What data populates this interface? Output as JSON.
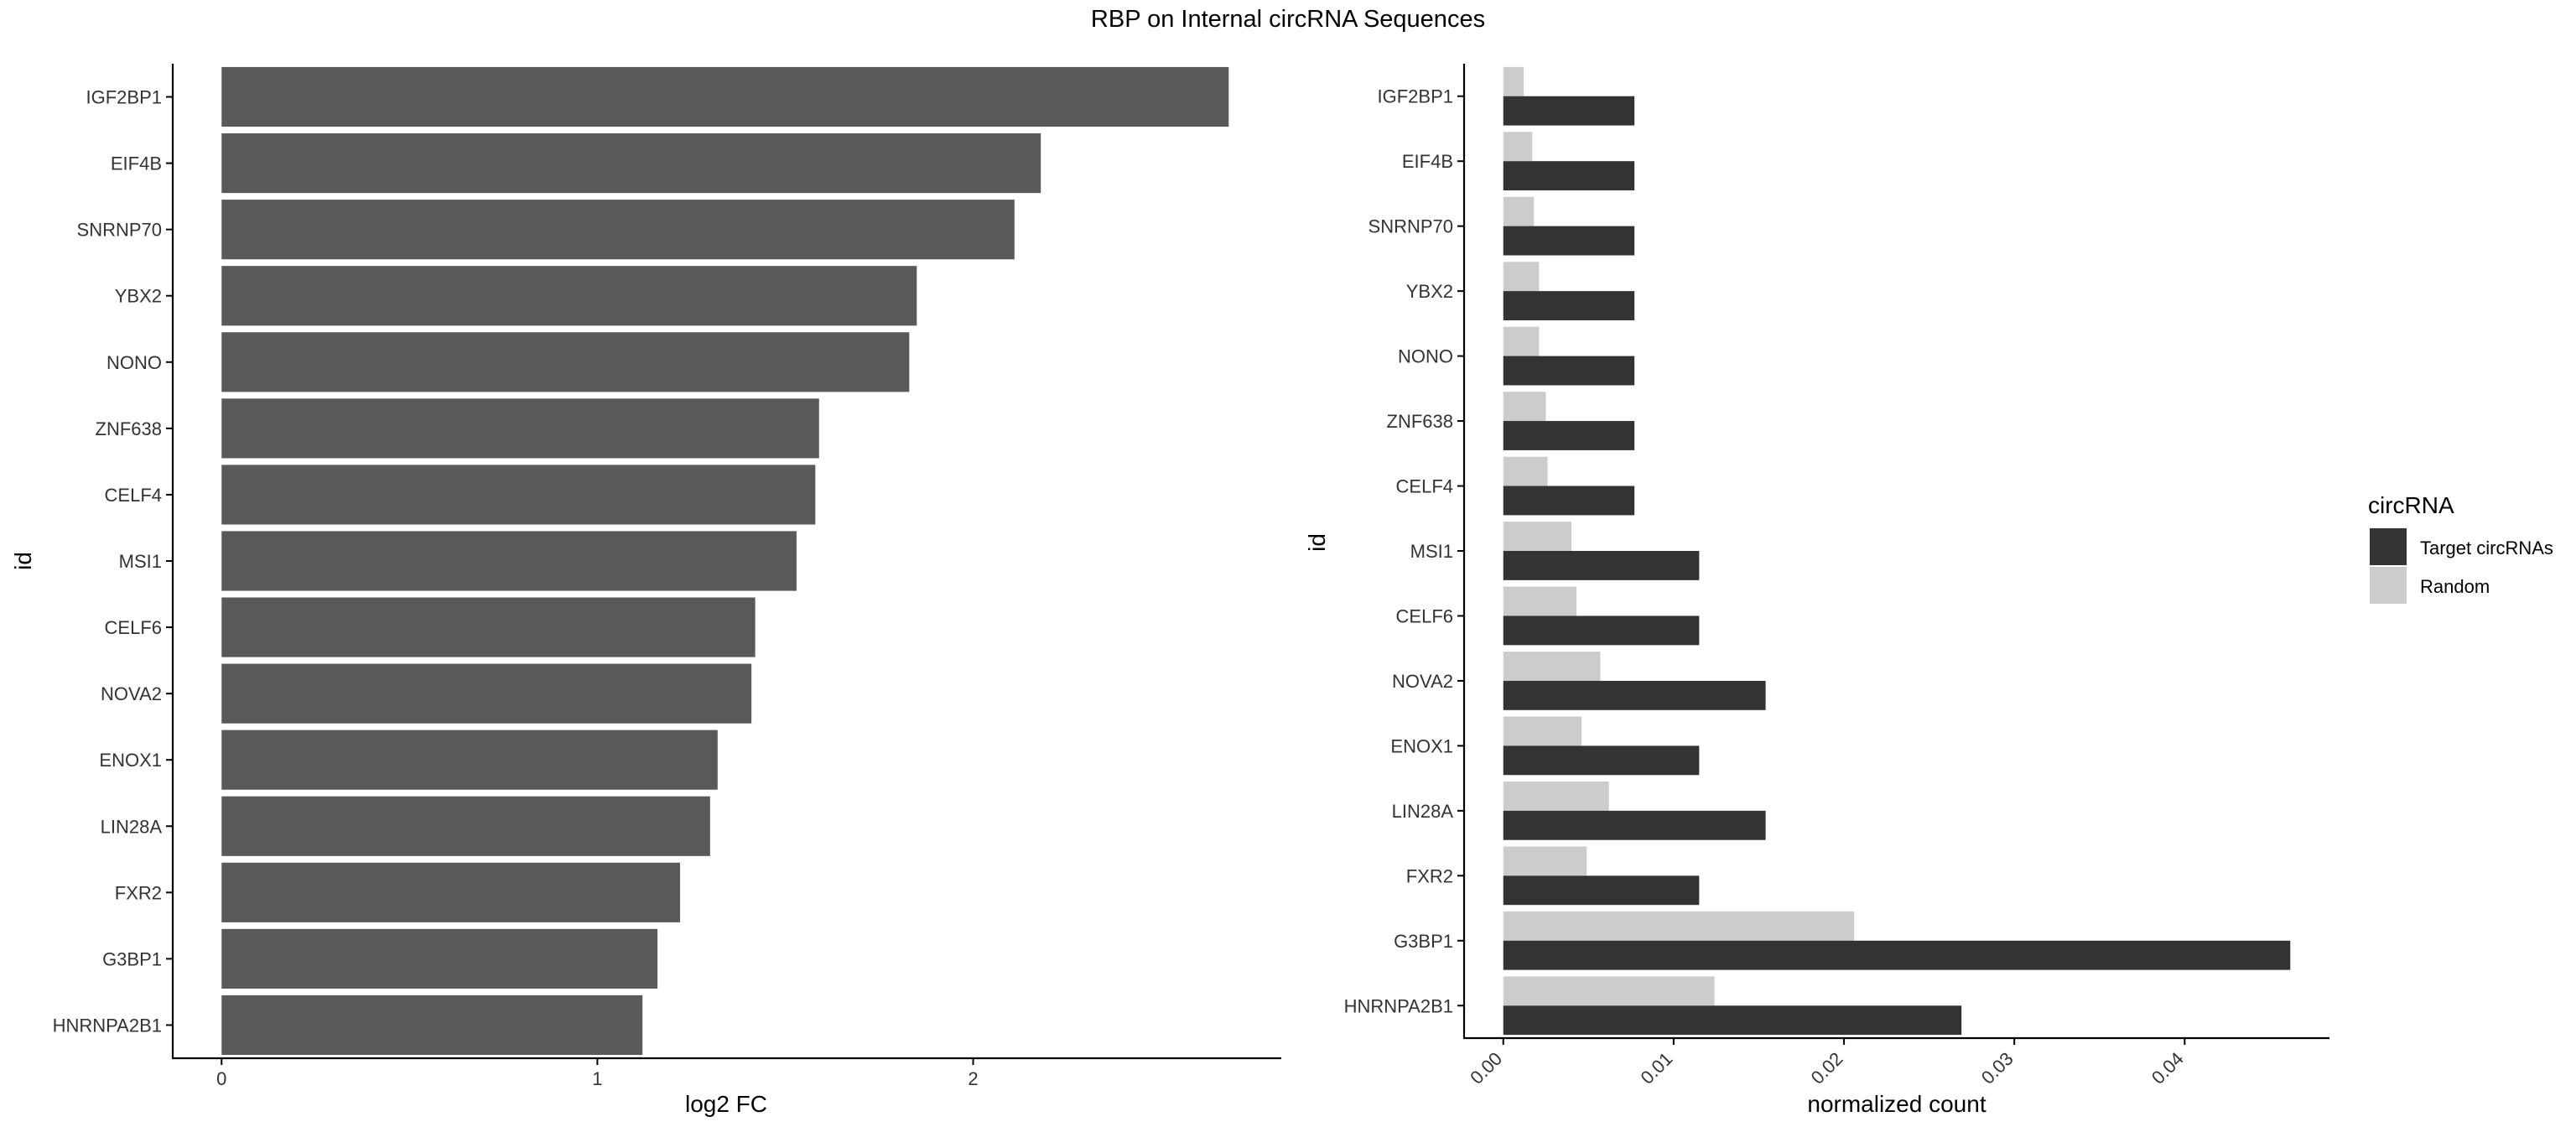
{
  "title": "RBP on Internal circRNA Sequences",
  "colors": {
    "bar_single": "#595959",
    "target": "#333333",
    "random": "#cccccc",
    "axis": "#000000",
    "text": "#333333",
    "title": "#000000"
  },
  "chart_data": [
    {
      "type": "bar",
      "orientation": "horizontal",
      "categories": [
        "IGF2BP1",
        "EIF4B",
        "SNRNP70",
        "YBX2",
        "NONO",
        "ZNF638",
        "CELF4",
        "MSI1",
        "CELF6",
        "NOVA2",
        "ENOX1",
        "LIN28A",
        "FXR2",
        "G3BP1",
        "HNRNPA2B1"
      ],
      "values": [
        2.68,
        2.18,
        2.11,
        1.85,
        1.83,
        1.59,
        1.58,
        1.53,
        1.42,
        1.41,
        1.32,
        1.3,
        1.22,
        1.16,
        1.12
      ],
      "xlabel": "log2 FC",
      "ylabel": "id",
      "xlim": [
        -0.13,
        2.82
      ],
      "xticks": [
        0,
        1,
        2
      ],
      "xtick_labels": [
        "0",
        "1",
        "2"
      ],
      "grid": false
    },
    {
      "type": "bar",
      "orientation": "horizontal",
      "grouped": true,
      "categories": [
        "IGF2BP1",
        "EIF4B",
        "SNRNP70",
        "YBX2",
        "NONO",
        "ZNF638",
        "CELF4",
        "MSI1",
        "CELF6",
        "NOVA2",
        "ENOX1",
        "LIN28A",
        "FXR2",
        "G3BP1",
        "HNRNPA2B1"
      ],
      "series": [
        {
          "name": "Target circRNAs",
          "values": [
            0.0077,
            0.0077,
            0.0077,
            0.0077,
            0.0077,
            0.0077,
            0.0077,
            0.0115,
            0.0115,
            0.0154,
            0.0115,
            0.0154,
            0.0115,
            0.0462,
            0.0269
          ]
        },
        {
          "name": "Random",
          "values": [
            0.0012,
            0.0017,
            0.0018,
            0.0021,
            0.0021,
            0.0025,
            0.0026,
            0.004,
            0.0043,
            0.0057,
            0.0046,
            0.0062,
            0.0049,
            0.0206,
            0.0124
          ]
        }
      ],
      "xlabel": "normalized count",
      "ylabel": "id",
      "xlim": [
        -0.0023,
        0.0485
      ],
      "xticks": [
        0,
        0.01,
        0.02,
        0.03,
        0.04
      ],
      "xtick_labels": [
        "0.00",
        "0.01",
        "0.02",
        "0.03",
        "0.04"
      ],
      "grid": false,
      "legend": {
        "title": "circRNA",
        "placement": "right",
        "entries": [
          "Target circRNAs",
          "Random"
        ]
      }
    }
  ]
}
